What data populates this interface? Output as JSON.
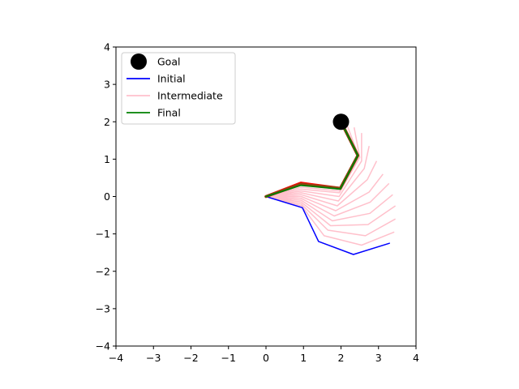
{
  "chart_data": {
    "type": "line",
    "title": "",
    "xlabel": "",
    "ylabel": "",
    "xlim": [
      -4,
      4
    ],
    "ylim": [
      -4,
      4
    ],
    "xticks": [
      -4,
      -3,
      -2,
      -1,
      0,
      1,
      2,
      3,
      4
    ],
    "yticks": [
      -4,
      -3,
      -2,
      -1,
      0,
      1,
      2,
      3,
      4
    ],
    "xtick_labels": [
      "−4",
      "−3",
      "−2",
      "−1",
      "0",
      "1",
      "2",
      "3",
      "4"
    ],
    "ytick_labels": [
      "−4",
      "−3",
      "−2",
      "−1",
      "0",
      "1",
      "2",
      "3",
      "4"
    ],
    "grid": false,
    "aspect": "equal",
    "legend_position": "upper-left",
    "goal": {
      "label": "Goal",
      "x": 2.0,
      "y": 2.0,
      "color": "#000000"
    },
    "series": [
      {
        "name": "Initial",
        "color": "#0000ff",
        "x": [
          0.0,
          0.97,
          1.4,
          2.33,
          3.29
        ],
        "y": [
          0.0,
          -0.3,
          -1.2,
          -1.55,
          -1.25
        ]
      },
      {
        "name": "Intermediate",
        "color": "#ffc0cb",
        "paths": [
          {
            "x": [
              0.0,
              0.95,
              1.55,
              2.55,
              3.42
            ],
            "y": [
              0.0,
              -0.25,
              -1.05,
              -1.3,
              -0.95
            ]
          },
          {
            "x": [
              0.0,
              0.94,
              1.65,
              2.65,
              3.45
            ],
            "y": [
              0.0,
              -0.2,
              -0.9,
              -1.05,
              -0.6
            ]
          },
          {
            "x": [
              0.0,
              0.94,
              1.72,
              2.72,
              3.45
            ],
            "y": [
              0.0,
              -0.15,
              -0.78,
              -0.75,
              -0.25
            ]
          },
          {
            "x": [
              0.0,
              0.94,
              1.77,
              2.77,
              3.38
            ],
            "y": [
              0.0,
              -0.1,
              -0.65,
              -0.45,
              0.05
            ]
          },
          {
            "x": [
              0.0,
              0.94,
              1.82,
              2.78,
              3.28
            ],
            "y": [
              0.0,
              -0.05,
              -0.52,
              -0.15,
              0.35
            ]
          },
          {
            "x": [
              0.0,
              0.94,
              1.86,
              2.75,
              3.12
            ],
            "y": [
              0.0,
              0.0,
              -0.38,
              0.12,
              0.6
            ]
          },
          {
            "x": [
              0.0,
              0.94,
              1.9,
              2.7,
              2.95
            ],
            "y": [
              0.0,
              0.05,
              -0.25,
              0.45,
              0.95
            ]
          },
          {
            "x": [
              0.0,
              0.94,
              1.93,
              2.62,
              2.75
            ],
            "y": [
              0.0,
              0.1,
              -0.12,
              0.75,
              1.35
            ]
          },
          {
            "x": [
              0.0,
              0.94,
              1.95,
              2.55,
              2.55
            ],
            "y": [
              0.0,
              0.15,
              0.0,
              0.95,
              1.7
            ]
          },
          {
            "x": [
              0.0,
              0.94,
              1.96,
              2.5,
              2.35
            ],
            "y": [
              0.0,
              0.2,
              0.1,
              1.05,
              1.85
            ]
          },
          {
            "x": [
              0.0,
              0.94,
              1.97,
              2.47,
              2.15
            ],
            "y": [
              0.0,
              0.25,
              0.15,
              1.08,
              1.95
            ]
          }
        ]
      },
      {
        "name": "",
        "color": "#ff0000",
        "x": [
          0.0,
          0.93,
          1.98,
          2.45,
          2.0
        ],
        "y": [
          0.0,
          0.36,
          0.22,
          1.1,
          2.0
        ]
      },
      {
        "name": "",
        "color": "#8b4513",
        "x": [
          0.0,
          0.93,
          1.98,
          2.45,
          2.0
        ],
        "y": [
          0.0,
          0.33,
          0.22,
          1.1,
          2.0
        ]
      },
      {
        "name": "Final",
        "color": "#008000",
        "x": [
          0.0,
          0.93,
          1.98,
          2.45,
          2.0
        ],
        "y": [
          0.0,
          0.3,
          0.2,
          1.1,
          2.0
        ]
      }
    ],
    "legend": [
      {
        "label": "Goal",
        "kind": "marker",
        "color": "#000000"
      },
      {
        "label": "Initial",
        "kind": "line",
        "color": "#0000ff"
      },
      {
        "label": "Intermediate",
        "kind": "line",
        "color": "#ffc0cb"
      },
      {
        "label": "Final",
        "kind": "line",
        "color": "#008000"
      }
    ]
  }
}
